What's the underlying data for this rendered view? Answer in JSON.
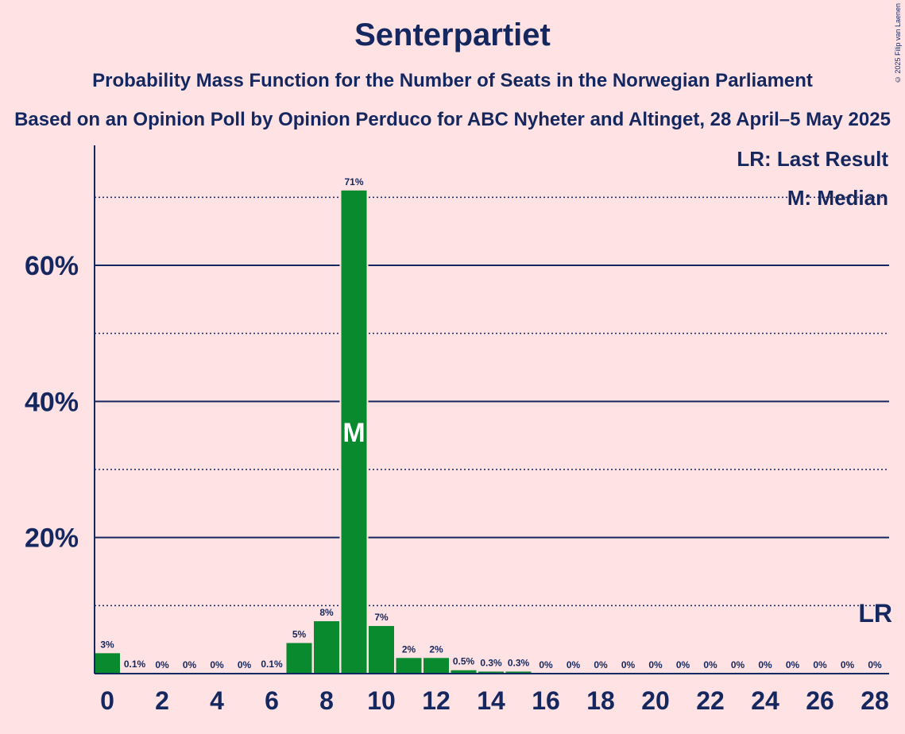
{
  "header": {
    "title": "Senterpartiet",
    "subtitle": "Probability Mass Function for the Number of Seats in the Norwegian Parliament",
    "subtitle2": "Based on an Opinion Poll by Opinion Perduco for ABC Nyheter and Altinget, 28 April–5 May 2025",
    "copyright": "© 2025 Filip van Laenen"
  },
  "legend": {
    "last_result": "LR: Last Result",
    "median": "M: Median"
  },
  "colors": {
    "background": "#FFE2E3",
    "bar": "#0A8A2E",
    "text": "#14275E"
  },
  "chart_data": {
    "type": "bar",
    "title": "Senterpartiet",
    "x": [
      0,
      1,
      2,
      3,
      4,
      5,
      6,
      7,
      8,
      9,
      10,
      11,
      12,
      13,
      14,
      15,
      16,
      17,
      18,
      19,
      20,
      21,
      22,
      23,
      24,
      25,
      26,
      27,
      28
    ],
    "values": [
      3,
      0.1,
      0,
      0,
      0,
      0,
      0.1,
      4.5,
      7.7,
      71,
      7,
      2.3,
      2.3,
      0.5,
      0.3,
      0.3,
      0,
      0,
      0,
      0,
      0,
      0,
      0,
      0,
      0,
      0,
      0,
      0,
      0
    ],
    "data_labels": [
      "3%",
      "0.1%",
      "0%",
      "0%",
      "0%",
      "0%",
      "0.1%",
      "5%",
      "8%",
      "71%",
      "7%",
      "2%",
      "2%",
      "0.5%",
      "0.3%",
      "0.3%",
      "0%",
      "0%",
      "0%",
      "0%",
      "0%",
      "0%",
      "0%",
      "0%",
      "0%",
      "0%",
      "0%",
      "0%",
      "0%"
    ],
    "x_tick_labels": [
      "0",
      "2",
      "4",
      "6",
      "8",
      "10",
      "12",
      "14",
      "16",
      "18",
      "20",
      "22",
      "24",
      "26",
      "28"
    ],
    "y_tick_labels": [
      "20%",
      "40%",
      "60%"
    ],
    "ylim": [
      0,
      77.5
    ],
    "xlim": [
      0,
      28
    ],
    "major_grid": [
      20,
      40,
      60
    ],
    "minor_grid": [
      10,
      30,
      50,
      70
    ],
    "median_seat": 9,
    "median_marker": "M",
    "last_result_seat": 28,
    "last_result_marker": "LR",
    "legend_position": "top-right"
  }
}
